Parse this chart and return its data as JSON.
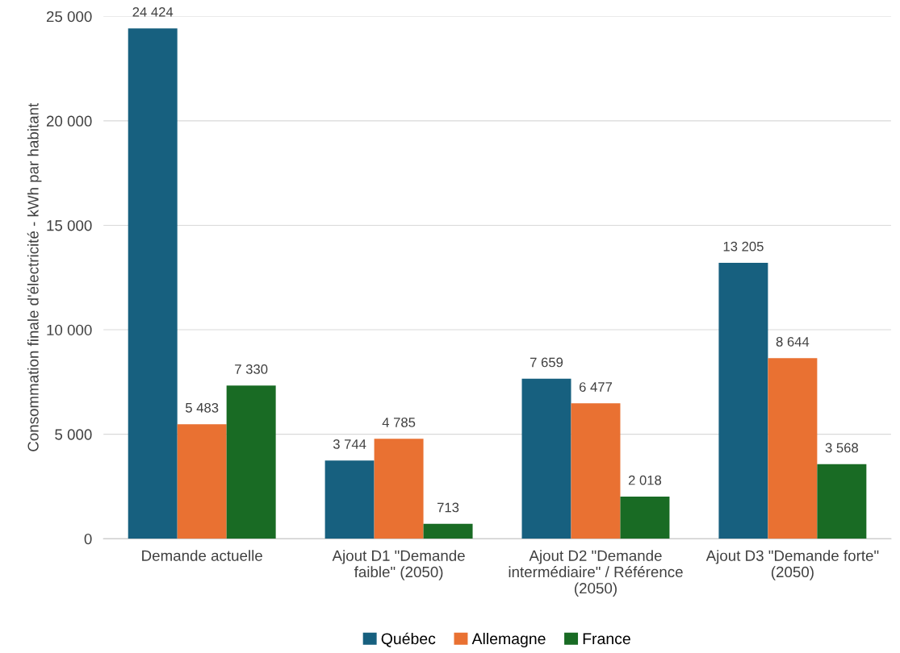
{
  "chart_data": {
    "type": "bar",
    "ylabel": "Consommation finale d'électricité - kWh par habitant",
    "categories": [
      "Demande actuelle",
      "Ajout D1 \"Demande\nfaible\" (2050)",
      "Ajout D2 \"Demande\nintermédiaire\" / Référence\n(2050)",
      "Ajout D3 \"Demande forte\"\n(2050)"
    ],
    "series": [
      {
        "name": "Québec",
        "color": "#17607f",
        "values": [
          24424,
          3744,
          7659,
          13205
        ],
        "value_labels": [
          "24 424",
          "3 744",
          "7 659",
          "13 205"
        ]
      },
      {
        "name": "Allemagne",
        "color": "#e97132",
        "values": [
          5483,
          4785,
          6477,
          8644
        ],
        "value_labels": [
          "5 483",
          "4 785",
          "6 477",
          "8 644"
        ]
      },
      {
        "name": "France",
        "color": "#196b24",
        "values": [
          7330,
          713,
          2018,
          3568
        ],
        "value_labels": [
          "7 330",
          "713",
          "2 018",
          "3 568"
        ]
      }
    ],
    "ylim": [
      0,
      25000
    ],
    "yticks": [
      0,
      {
        "value": 5000,
        "label": "5 000"
      },
      {
        "value": 10000,
        "label": "10 000"
      },
      {
        "value": 15000,
        "label": "15 000"
      },
      {
        "value": 20000,
        "label": "20 000"
      },
      {
        "value": 25000,
        "label": "25 000"
      }
    ],
    "grid": "y",
    "legend": "bottom"
  }
}
